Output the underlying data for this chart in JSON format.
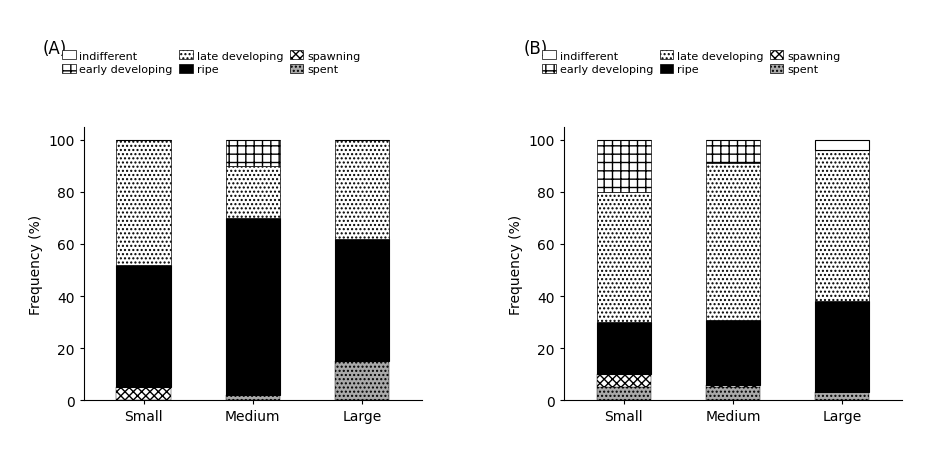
{
  "categories": [
    "Small",
    "Medium",
    "Large"
  ],
  "panel_A": {
    "indifferent": [
      0,
      0,
      0
    ],
    "early_developing": [
      0,
      10,
      0
    ],
    "late_developing": [
      48,
      20,
      38
    ],
    "ripe": [
      47,
      68,
      47
    ],
    "spawning": [
      5,
      0,
      0
    ],
    "spent": [
      0,
      2,
      15
    ]
  },
  "panel_B": {
    "indifferent": [
      0,
      0,
      4
    ],
    "early_developing": [
      20,
      9,
      0
    ],
    "late_developing": [
      50,
      60,
      58
    ],
    "ripe": [
      20,
      25,
      35
    ],
    "spawning": [
      5,
      1,
      0
    ],
    "spent": [
      5,
      5,
      3
    ]
  },
  "ylabel": "Frequency (%)",
  "ylim": [
    0,
    105
  ],
  "yticks": [
    0,
    20,
    40,
    60,
    80,
    100
  ],
  "title_A": "(A)",
  "title_B": "(B)"
}
